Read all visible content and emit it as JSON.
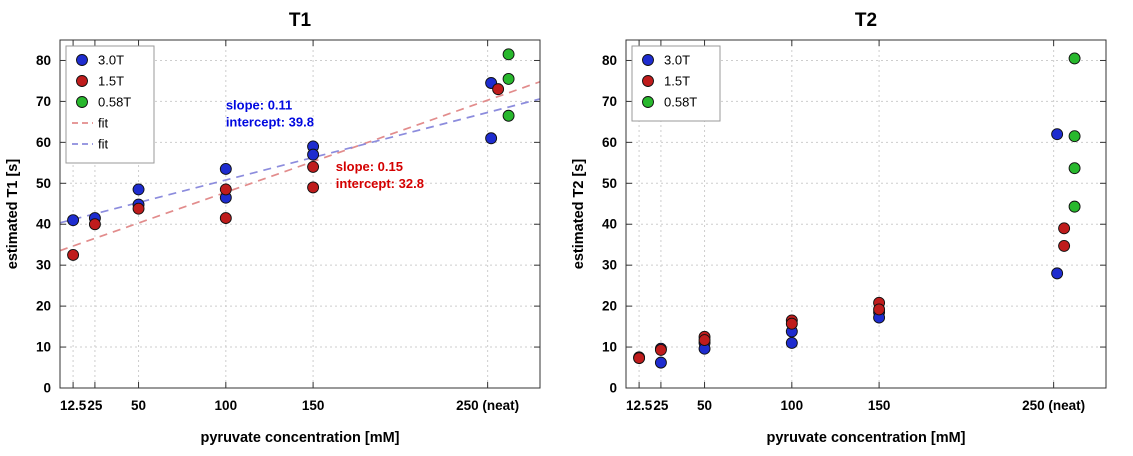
{
  "figure": {
    "background": "#ffffff"
  },
  "chart_data": [
    {
      "type": "scatter",
      "title": "T1",
      "xlabel": "pyruvate concentration [mM]",
      "ylabel": "estimated T1 [s]",
      "xlim": [
        5,
        280
      ],
      "ylim": [
        0,
        85
      ],
      "grid": true,
      "xticks": [
        {
          "v": 12.5,
          "label": "12.5"
        },
        {
          "v": 25,
          "label": "25"
        },
        {
          "v": 50,
          "label": "50"
        },
        {
          "v": 100,
          "label": "100"
        },
        {
          "v": 150,
          "label": "150"
        },
        {
          "v": 250,
          "label": "250 (neat)"
        }
      ],
      "yticks": [
        0,
        10,
        20,
        30,
        40,
        50,
        60,
        70,
        80
      ],
      "series": [
        {
          "name": "3.0T",
          "color": "#1e2ccf",
          "points": [
            [
              12.5,
              41
            ],
            [
              25,
              41.5
            ],
            [
              50,
              48.5
            ],
            [
              50,
              44.8
            ],
            [
              100,
              53.5
            ],
            [
              100,
              46.5
            ],
            [
              150,
              59
            ],
            [
              150,
              57
            ],
            [
              252,
              74.5
            ],
            [
              252,
              61
            ]
          ]
        },
        {
          "name": "1.5T",
          "color": "#bf1c1c",
          "points": [
            [
              12.5,
              32.5
            ],
            [
              25,
              40
            ],
            [
              50,
              43.8
            ],
            [
              100,
              48.5
            ],
            [
              100,
              41.5
            ],
            [
              150,
              54
            ],
            [
              150,
              49
            ],
            [
              256,
              73
            ]
          ]
        },
        {
          "name": "0.58T",
          "color": "#28b82d",
          "points": [
            [
              262,
              81.5
            ],
            [
              262,
              75.5
            ],
            [
              262,
              66.5
            ]
          ]
        }
      ],
      "fits": [
        {
          "label": "fit",
          "color": "#e28c8c",
          "slope": 0.15,
          "intercept": 32.8
        },
        {
          "label": "fit",
          "color": "#8c8cdd",
          "slope": 0.11,
          "intercept": 39.8
        }
      ],
      "annotations": [
        {
          "lines": [
            "slope: 0.11",
            "intercept: 39.8"
          ],
          "color": "#0008e0",
          "x": 100,
          "y": 68
        },
        {
          "lines": [
            "slope: 0.15",
            "intercept: 32.8"
          ],
          "color": "#d40000",
          "x": 163,
          "y": 53
        }
      ],
      "legend": [
        {
          "label": "3.0T",
          "marker": "circle",
          "color": "#1e2ccf"
        },
        {
          "label": "1.5T",
          "marker": "circle",
          "color": "#bf1c1c"
        },
        {
          "label": "0.58T",
          "marker": "circle",
          "color": "#28b82d"
        },
        {
          "label": "fit",
          "marker": "dash",
          "color": "#e28c8c"
        },
        {
          "label": "fit",
          "marker": "dash",
          "color": "#8c8cdd"
        }
      ]
    },
    {
      "type": "scatter",
      "title": "T2",
      "xlabel": "pyruvate concentration [mM]",
      "ylabel": "estimated T2 [s]",
      "xlim": [
        5,
        280
      ],
      "ylim": [
        0,
        85
      ],
      "grid": true,
      "xticks": [
        {
          "v": 12.5,
          "label": "12.5"
        },
        {
          "v": 25,
          "label": "25"
        },
        {
          "v": 50,
          "label": "50"
        },
        {
          "v": 100,
          "label": "100"
        },
        {
          "v": 150,
          "label": "150"
        },
        {
          "v": 250,
          "label": "250 (neat)"
        }
      ],
      "yticks": [
        0,
        10,
        20,
        30,
        40,
        50,
        60,
        70,
        80
      ],
      "series": [
        {
          "name": "3.0T",
          "color": "#1e2ccf",
          "points": [
            [
              12.5,
              7.5
            ],
            [
              25,
              9.6
            ],
            [
              25,
              6.2
            ],
            [
              50,
              11
            ],
            [
              50,
              9.6
            ],
            [
              100,
              13.8
            ],
            [
              100,
              11
            ],
            [
              150,
              18.5
            ],
            [
              150,
              17.2
            ],
            [
              252,
              62
            ],
            [
              252,
              28
            ]
          ]
        },
        {
          "name": "1.5T",
          "color": "#bf1c1c",
          "points": [
            [
              12.5,
              7.3
            ],
            [
              25,
              9.3
            ],
            [
              50,
              12.5
            ],
            [
              50,
              11.7
            ],
            [
              100,
              16.5
            ],
            [
              100,
              15.7
            ],
            [
              150,
              20.8
            ],
            [
              150,
              19.2
            ],
            [
              256,
              39
            ],
            [
              256,
              34.7
            ]
          ]
        },
        {
          "name": "0.58T",
          "color": "#28b82d",
          "points": [
            [
              262,
              80.5
            ],
            [
              262,
              61.5
            ],
            [
              262,
              53.7
            ],
            [
              262,
              44.3
            ]
          ]
        }
      ],
      "fits": [],
      "annotations": [],
      "legend": [
        {
          "label": "3.0T",
          "marker": "circle",
          "color": "#1e2ccf"
        },
        {
          "label": "1.5T",
          "marker": "circle",
          "color": "#bf1c1c"
        },
        {
          "label": "0.58T",
          "marker": "circle",
          "color": "#28b82d"
        }
      ]
    }
  ]
}
